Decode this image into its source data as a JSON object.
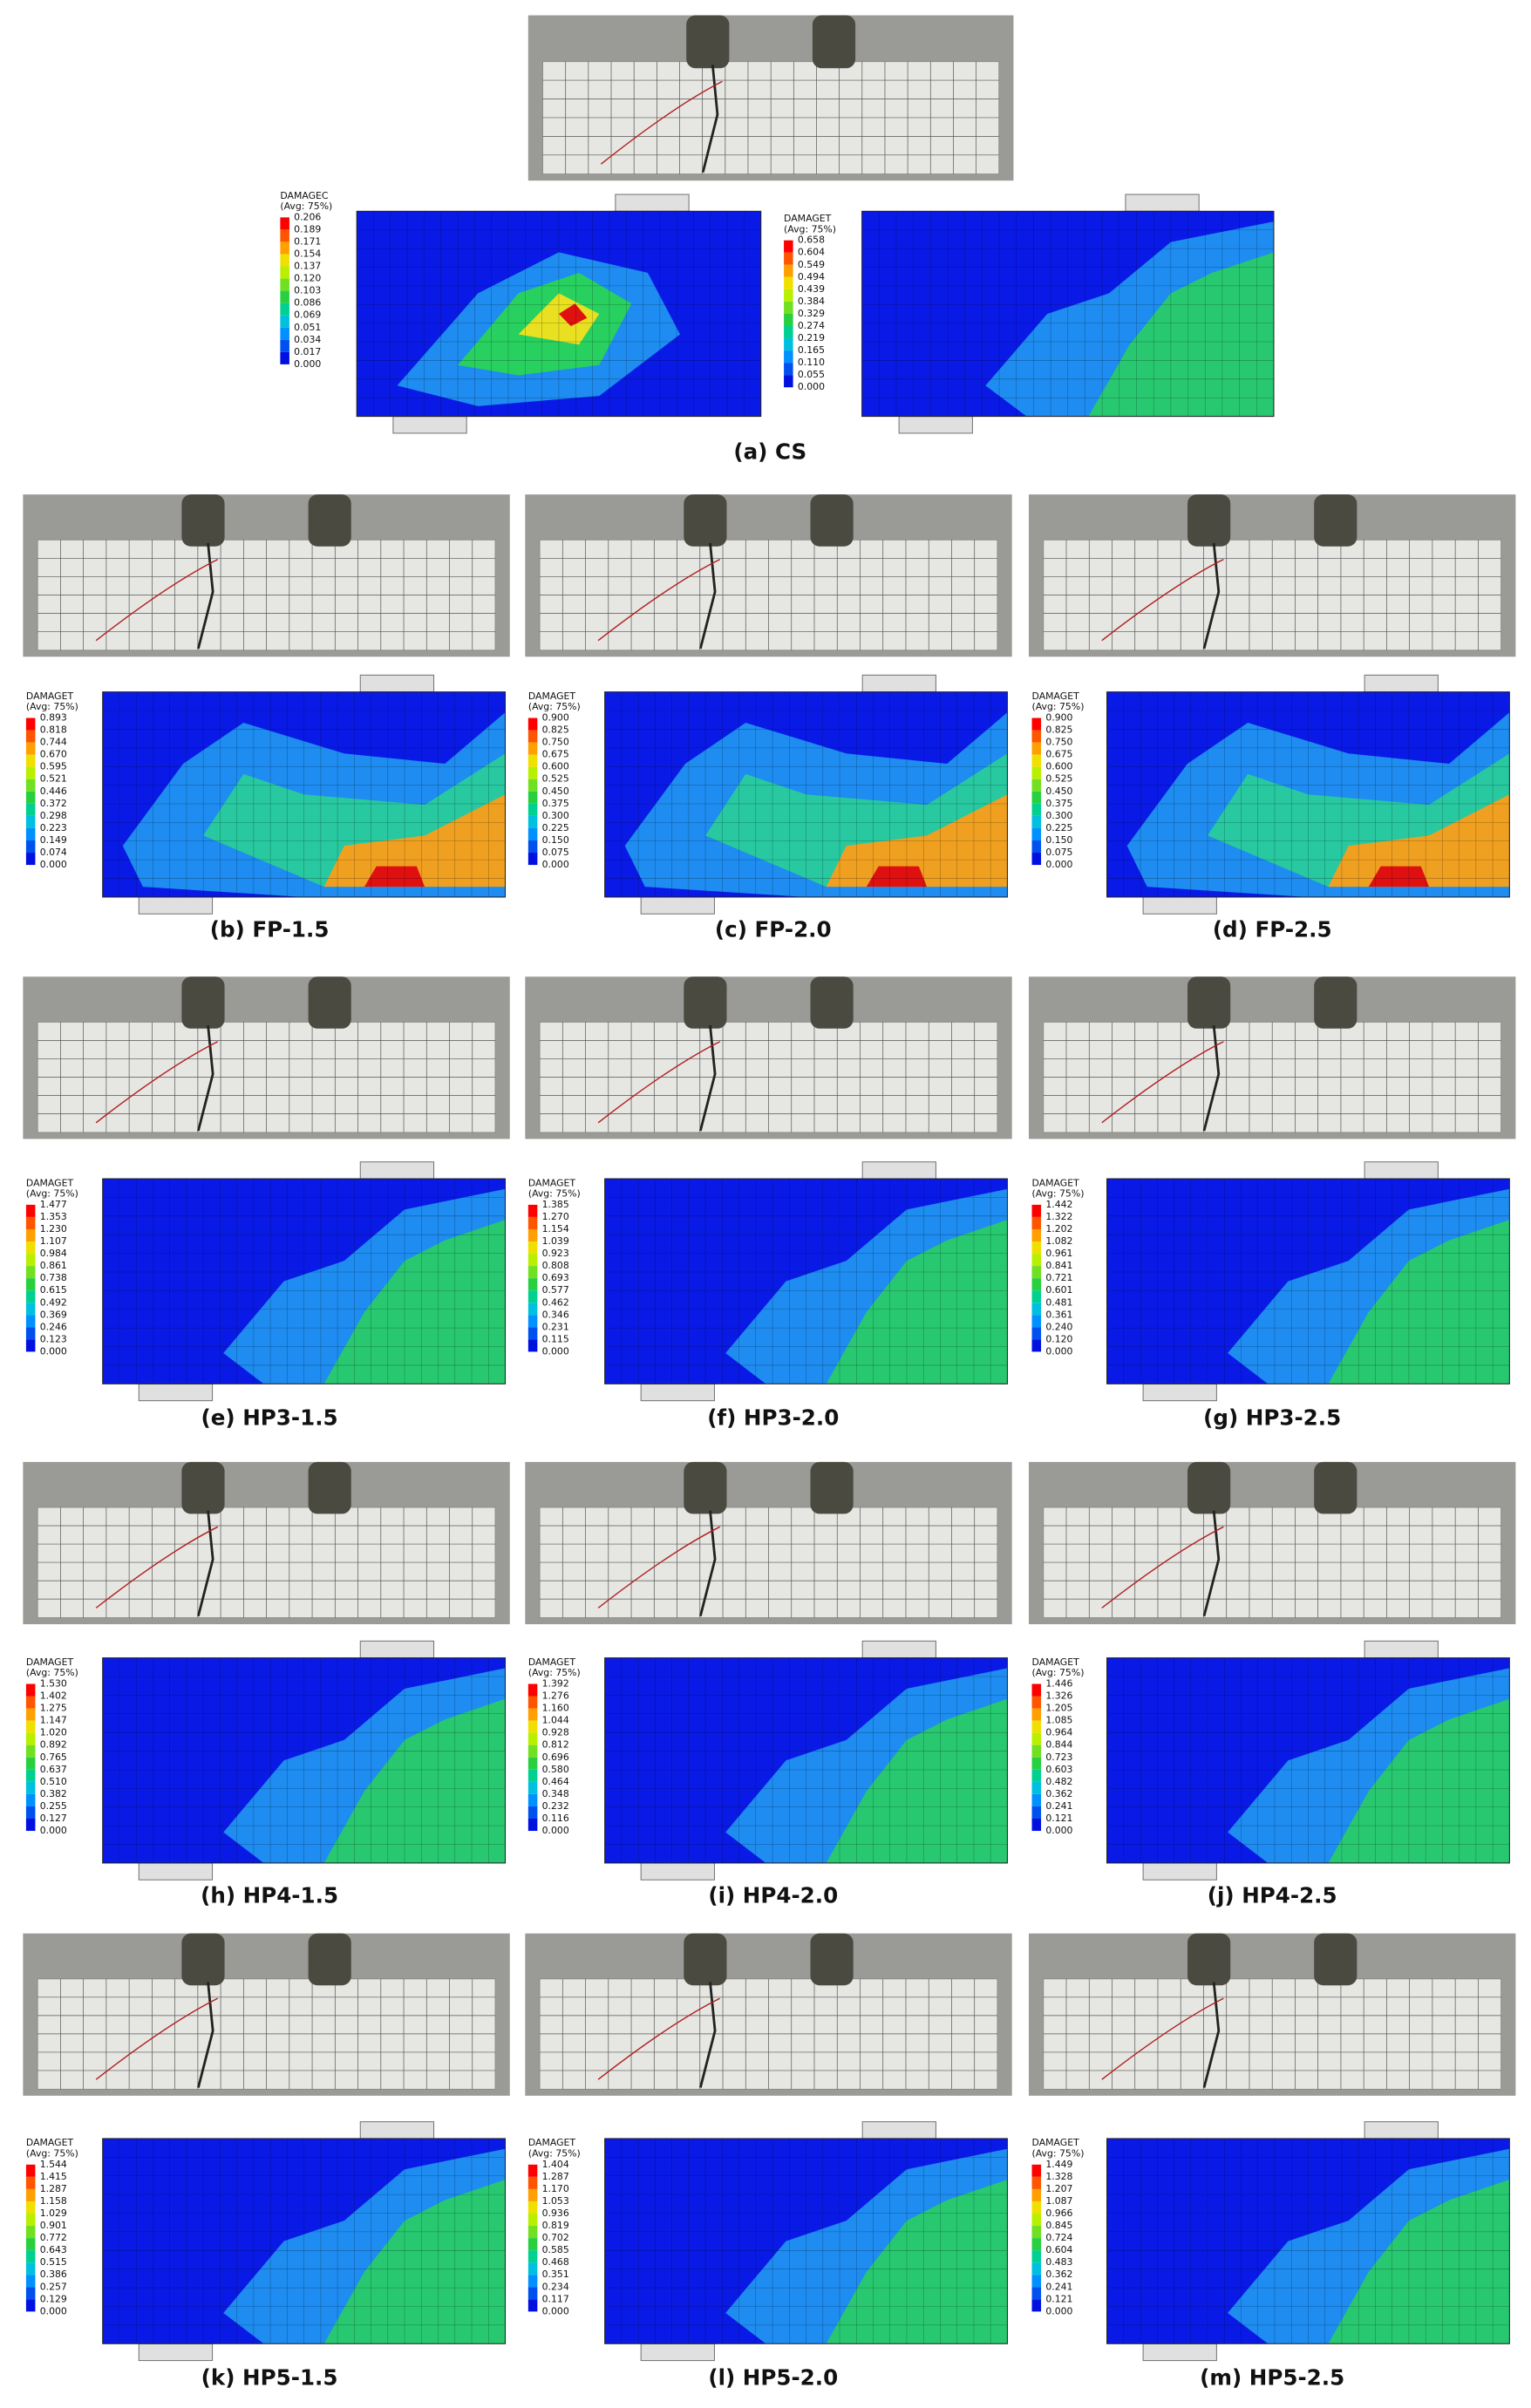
{
  "panels": [
    {
      "caption": "(a) CS",
      "plots": [
        {
          "title": "DAMAGEC",
          "avg": "(Avg: 75%)",
          "levels": [
            "0.206",
            "0.189",
            "0.171",
            "0.154",
            "0.137",
            "0.120",
            "0.103",
            "0.086",
            "0.069",
            "0.051",
            "0.034",
            "0.017",
            "0.000"
          ]
        },
        {
          "title": "DAMAGET",
          "avg": "(Avg: 75%)",
          "levels": [
            "0.658",
            "0.604",
            "0.549",
            "0.494",
            "0.439",
            "0.384",
            "0.329",
            "0.274",
            "0.219",
            "0.165",
            "0.110",
            "0.055",
            "0.000"
          ]
        }
      ]
    },
    {
      "caption": "(b) FP-1.5",
      "plots": [
        {
          "title": "DAMAGET",
          "avg": "(Avg: 75%)",
          "levels": [
            "0.893",
            "0.818",
            "0.744",
            "0.670",
            "0.595",
            "0.521",
            "0.446",
            "0.372",
            "0.298",
            "0.223",
            "0.149",
            "0.074",
            "0.000"
          ]
        }
      ]
    },
    {
      "caption": "(c) FP-2.0",
      "plots": [
        {
          "title": "DAMAGET",
          "avg": "(Avg: 75%)",
          "levels": [
            "0.900",
            "0.825",
            "0.750",
            "0.675",
            "0.600",
            "0.525",
            "0.450",
            "0.375",
            "0.300",
            "0.225",
            "0.150",
            "0.075",
            "0.000"
          ]
        }
      ]
    },
    {
      "caption": "(d) FP-2.5",
      "plots": [
        {
          "title": "DAMAGET",
          "avg": "(Avg: 75%)",
          "levels": [
            "0.900",
            "0.825",
            "0.750",
            "0.675",
            "0.600",
            "0.525",
            "0.450",
            "0.375",
            "0.300",
            "0.225",
            "0.150",
            "0.075",
            "0.000"
          ]
        }
      ]
    },
    {
      "caption": "(e) HP3-1.5",
      "plots": [
        {
          "title": "DAMAGET",
          "avg": "(Avg: 75%)",
          "levels": [
            "1.477",
            "1.353",
            "1.230",
            "1.107",
            "0.984",
            "0.861",
            "0.738",
            "0.615",
            "0.492",
            "0.369",
            "0.246",
            "0.123",
            "0.000"
          ]
        }
      ]
    },
    {
      "caption": "(f) HP3-2.0",
      "plots": [
        {
          "title": "DAMAGET",
          "avg": "(Avg: 75%)",
          "levels": [
            "1.385",
            "1.270",
            "1.154",
            "1.039",
            "0.923",
            "0.808",
            "0.693",
            "0.577",
            "0.462",
            "0.346",
            "0.231",
            "0.115",
            "0.000"
          ]
        }
      ]
    },
    {
      "caption": "(g) HP3-2.5",
      "plots": [
        {
          "title": "DAMAGET",
          "avg": "(Avg: 75%)",
          "levels": [
            "1.442",
            "1.322",
            "1.202",
            "1.082",
            "0.961",
            "0.841",
            "0.721",
            "0.601",
            "0.481",
            "0.361",
            "0.240",
            "0.120",
            "0.000"
          ]
        }
      ]
    },
    {
      "caption": "(h) HP4-1.5",
      "plots": [
        {
          "title": "DAMAGET",
          "avg": "(Avg: 75%)",
          "levels": [
            "1.530",
            "1.402",
            "1.275",
            "1.147",
            "1.020",
            "0.892",
            "0.765",
            "0.637",
            "0.510",
            "0.382",
            "0.255",
            "0.127",
            "0.000"
          ]
        }
      ]
    },
    {
      "caption": "(i) HP4-2.0",
      "plots": [
        {
          "title": "DAMAGET",
          "avg": "(Avg: 75%)",
          "levels": [
            "1.392",
            "1.276",
            "1.160",
            "1.044",
            "0.928",
            "0.812",
            "0.696",
            "0.580",
            "0.464",
            "0.348",
            "0.232",
            "0.116",
            "0.000"
          ]
        }
      ]
    },
    {
      "caption": "(j) HP4-2.5",
      "plots": [
        {
          "title": "DAMAGET",
          "avg": "(Avg: 75%)",
          "levels": [
            "1.446",
            "1.326",
            "1.205",
            "1.085",
            "0.964",
            "0.844",
            "0.723",
            "0.603",
            "0.482",
            "0.362",
            "0.241",
            "0.121",
            "0.000"
          ]
        }
      ]
    },
    {
      "caption": "(k) HP5-1.5",
      "plots": [
        {
          "title": "DAMAGET",
          "avg": "(Avg: 75%)",
          "levels": [
            "1.544",
            "1.415",
            "1.287",
            "1.158",
            "1.029",
            "0.901",
            "0.772",
            "0.643",
            "0.515",
            "0.386",
            "0.257",
            "0.129",
            "0.000"
          ]
        }
      ]
    },
    {
      "caption": "(l) HP5-2.0",
      "plots": [
        {
          "title": "DAMAGET",
          "avg": "(Avg: 75%)",
          "levels": [
            "1.404",
            "1.287",
            "1.170",
            "1.053",
            "0.936",
            "0.819",
            "0.702",
            "0.585",
            "0.468",
            "0.351",
            "0.234",
            "0.117",
            "0.000"
          ]
        }
      ]
    },
    {
      "caption": "(m) HP5-2.5",
      "plots": [
        {
          "title": "DAMAGET",
          "avg": "(Avg: 75%)",
          "levels": [
            "1.449",
            "1.328",
            "1.207",
            "1.087",
            "0.966",
            "0.845",
            "0.724",
            "0.604",
            "0.483",
            "0.362",
            "0.241",
            "0.121",
            "0.000"
          ]
        }
      ]
    }
  ]
}
